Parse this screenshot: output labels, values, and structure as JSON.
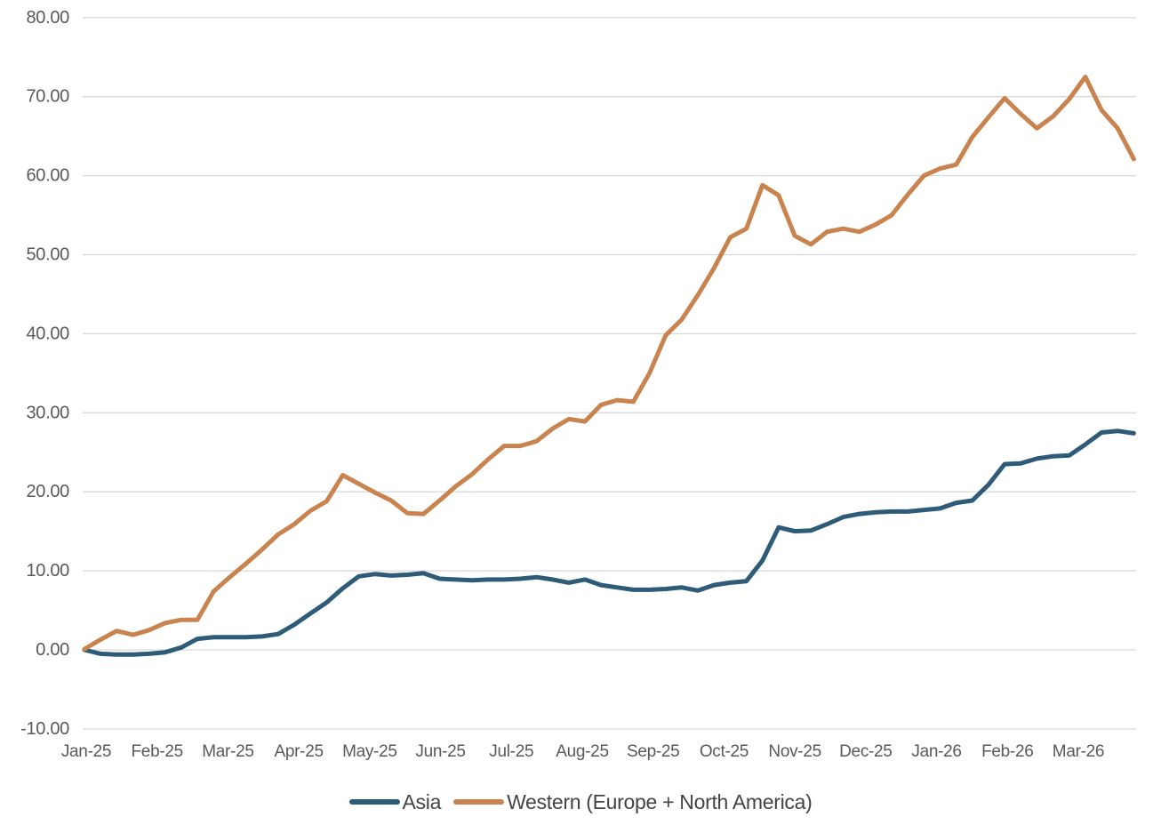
{
  "chart_data": {
    "type": "line",
    "title": "",
    "xlabel": "",
    "ylabel": "",
    "ylim": [
      -10,
      80
    ],
    "ytick_step": 10,
    "y_ticks": [
      "80.00",
      "70.00",
      "60.00",
      "50.00",
      "40.00",
      "30.00",
      "20.00",
      "10.00",
      "0.00",
      "-10.00"
    ],
    "categories": [
      "Jan-25",
      "Feb-25",
      "Mar-25",
      "Apr-25",
      "May-25",
      "Jun-25",
      "Jul-25",
      "Aug-25",
      "Sep-25",
      "Oct-25",
      "Nov-25",
      "Dec-25",
      "Jan-26",
      "Feb-26",
      "Mar-26"
    ],
    "x_resolution": "weekly",
    "grid": true,
    "grid_color": "#d9d9d9",
    "axis_label_color": "#595959",
    "legend_position": "bottom",
    "series": [
      {
        "name": "Asia",
        "color": "#2e5b78",
        "values": [
          0.0,
          -0.5,
          -0.6,
          -0.6,
          -0.5,
          -0.3,
          0.3,
          1.4,
          1.6,
          1.6,
          1.6,
          1.7,
          2.0,
          3.2,
          4.6,
          6.0,
          7.8,
          9.3,
          9.6,
          9.4,
          9.5,
          9.7,
          9.0,
          8.9,
          8.8,
          8.9,
          8.9,
          9.0,
          9.2,
          8.9,
          8.5,
          8.9,
          8.2,
          7.9,
          7.6,
          7.6,
          7.7,
          7.9,
          7.5,
          8.2,
          8.5,
          8.7,
          11.3,
          15.5,
          15.0,
          15.1,
          15.9,
          16.8,
          17.2,
          17.4,
          17.5,
          17.5,
          17.7,
          17.9,
          18.6,
          18.9,
          20.9,
          23.5,
          23.6,
          24.2,
          24.5,
          24.6,
          26.0,
          27.5,
          27.7,
          27.4
        ]
      },
      {
        "name": "Western (Europe + North America)",
        "color": "#c9834e",
        "values": [
          0.1,
          1.3,
          2.4,
          1.9,
          2.5,
          3.4,
          3.8,
          3.8,
          7.4,
          9.2,
          10.9,
          12.7,
          14.6,
          15.9,
          17.6,
          18.8,
          22.1,
          21.0,
          19.9,
          18.9,
          17.3,
          17.2,
          18.9,
          20.7,
          22.2,
          24.1,
          25.8,
          25.8,
          26.4,
          28.0,
          29.2,
          28.9,
          31.0,
          31.6,
          31.4,
          35.0,
          39.8,
          41.8,
          44.9,
          48.3,
          52.2,
          53.3,
          58.8,
          57.5,
          52.4,
          51.3,
          52.9,
          53.3,
          52.9,
          53.8,
          55.0,
          57.6,
          60.0,
          60.9,
          61.4,
          64.9,
          67.4,
          69.8,
          67.8,
          66.0,
          67.5,
          69.7,
          72.5,
          68.3,
          66.0,
          62.1
        ]
      }
    ]
  }
}
